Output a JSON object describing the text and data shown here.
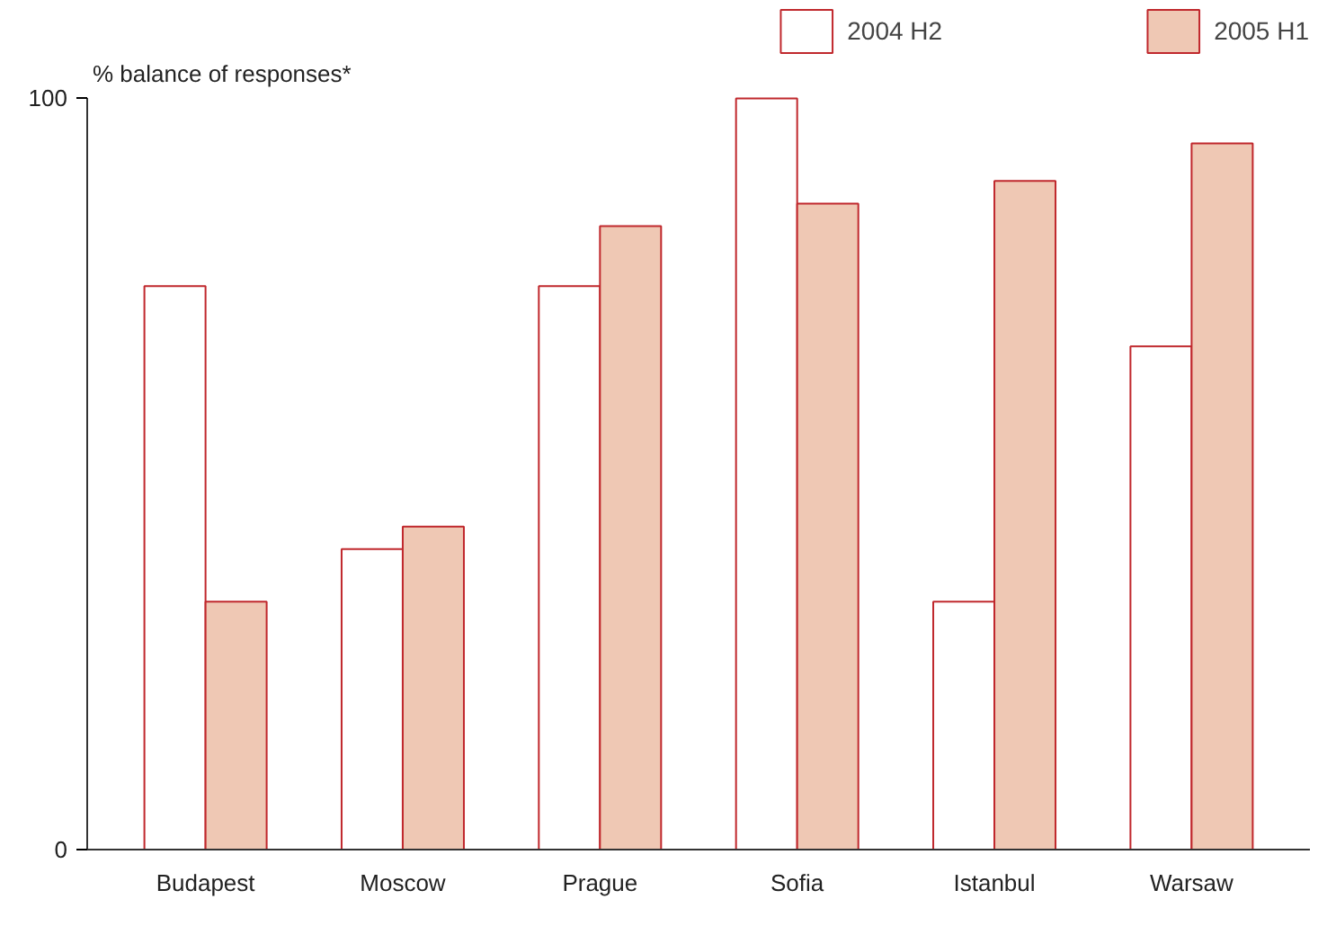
{
  "chart_data": {
    "type": "bar",
    "ylabel": "% balance of responses*",
    "categories": [
      "Budapest",
      "Moscow",
      "Prague",
      "Sofia",
      "Istanbul",
      "Warsaw"
    ],
    "series": [
      {
        "name": "2004 H2",
        "color": "#ffffff",
        "values": [
          75,
          40,
          75,
          100,
          33,
          67
        ]
      },
      {
        "name": "2005 H1",
        "color": "#efc8b4",
        "values": [
          33,
          43,
          83,
          86,
          89,
          94
        ]
      }
    ],
    "ylim": [
      0,
      100
    ],
    "yticks": [
      0,
      100
    ],
    "grid": false,
    "legend": "top"
  }
}
